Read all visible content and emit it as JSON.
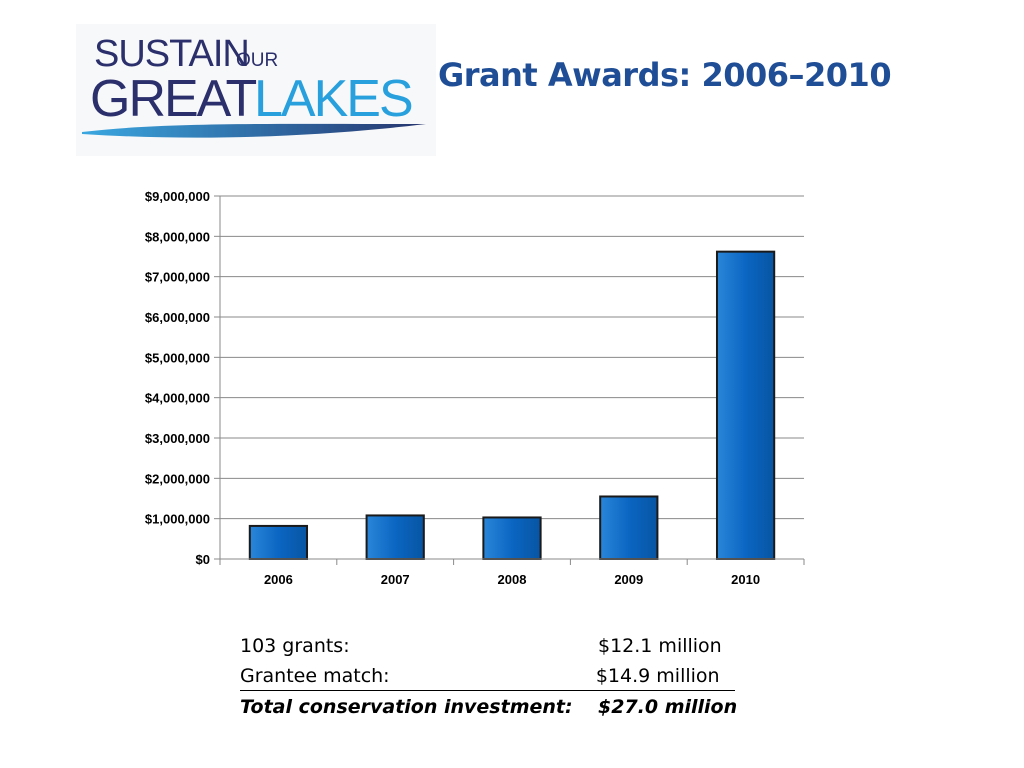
{
  "logo": {
    "line1": "SUSTAIN",
    "line1_small": "OUR",
    "line2a": "GREAT",
    "line2b": "LAKES"
  },
  "title": "Grant Awards:  2006–2010",
  "chart_data": {
    "type": "bar",
    "categories": [
      "2006",
      "2007",
      "2008",
      "2009",
      "2010"
    ],
    "values": [
      820000,
      1080000,
      1030000,
      1550000,
      7620000
    ],
    "yticks": [
      "$0",
      "$1,000,000",
      "$2,000,000",
      "$3,000,000",
      "$4,000,000",
      "$5,000,000",
      "$6,000,000",
      "$7,000,000",
      "$8,000,000",
      "$9,000,000"
    ],
    "ylim": [
      0,
      9000000
    ],
    "grid": true,
    "legend": "none",
    "bar_color": "#0a66c2"
  },
  "summary": {
    "grants_label": "103 grants:",
    "grants_value": "$12.1 million",
    "match_label": "Grantee match:",
    "match_value": "$14.9 million",
    "total_label": "Total conservation investment:",
    "total_value": "$27.0 million"
  }
}
